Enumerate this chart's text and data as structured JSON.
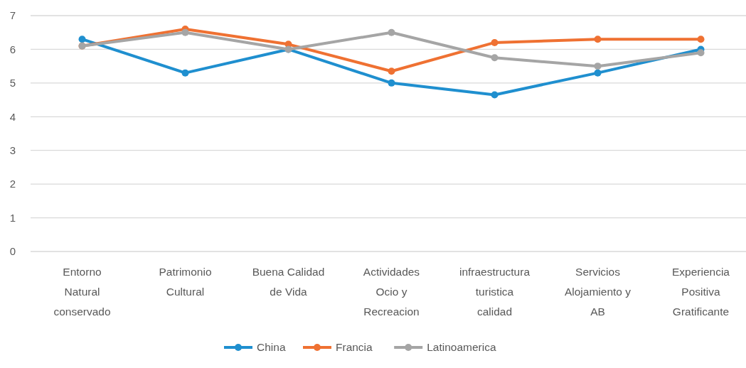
{
  "chart_data": {
    "type": "line",
    "categories": [
      "Entorno Natural conservado",
      "Patrimonio Cultural",
      "Buena Calidad de Vida",
      "Actividades Ocio y Recreacion",
      "infraestructura turistica calidad",
      "Servicios Alojamiento y AB",
      "Experiencia Positiva Gratificante"
    ],
    "series": [
      {
        "name": "China",
        "color": "#1f8fcf",
        "values": [
          6.3,
          5.3,
          6.0,
          5.0,
          4.65,
          5.3,
          6.0
        ]
      },
      {
        "name": "Francia",
        "color": "#ef7132",
        "values": [
          6.1,
          6.6,
          6.15,
          5.35,
          6.2,
          6.3,
          6.3
        ]
      },
      {
        "name": "Latinoamerica",
        "color": "#a5a5a5",
        "values": [
          6.1,
          6.5,
          6.0,
          6.5,
          5.75,
          5.5,
          5.9
        ]
      }
    ],
    "ylim": [
      0,
      7
    ],
    "yticks": [
      0,
      1,
      2,
      3,
      4,
      5,
      6,
      7
    ],
    "grid": "y",
    "legend": "bottom",
    "marker": "circle",
    "line_style": "solid"
  }
}
